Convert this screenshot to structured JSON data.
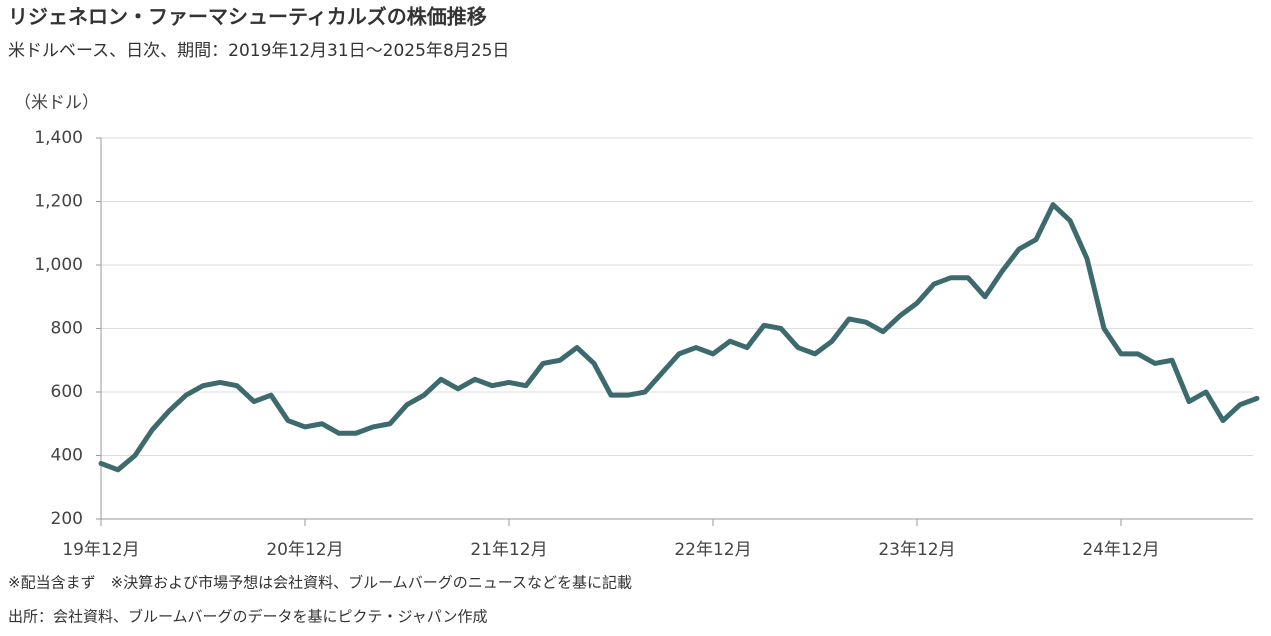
{
  "chart_data": {
    "type": "line",
    "title": "リジェネロン・ファーマシューティカルズの株価推移",
    "subtitle": "米ドルベース、日次、期間：2019年12月31日～2025年8月25日",
    "y_label": "（米ドル）",
    "notes": [
      "※配当含まず　※決算および市場予想は会社資料、ブルームバーグのニュースなどを基に記載",
      "出所：会社資料、ブルームバーグのデータを基にピクテ・ジャパン作成"
    ],
    "x": [
      "2019-12",
      "2020-01",
      "2020-02",
      "2020-03",
      "2020-04",
      "2020-05",
      "2020-06",
      "2020-07",
      "2020-08",
      "2020-09",
      "2020-10",
      "2020-11",
      "2020-12",
      "2021-01",
      "2021-02",
      "2021-03",
      "2021-04",
      "2021-05",
      "2021-06",
      "2021-07",
      "2021-08",
      "2021-09",
      "2021-10",
      "2021-11",
      "2021-12",
      "2022-01",
      "2022-02",
      "2022-03",
      "2022-04",
      "2022-05",
      "2022-06",
      "2022-07",
      "2022-08",
      "2022-09",
      "2022-10",
      "2022-11",
      "2022-12",
      "2023-01",
      "2023-02",
      "2023-03",
      "2023-04",
      "2023-05",
      "2023-06",
      "2023-07",
      "2023-08",
      "2023-09",
      "2023-10",
      "2023-11",
      "2023-12",
      "2024-01",
      "2024-02",
      "2024-03",
      "2024-04",
      "2024-05",
      "2024-06",
      "2024-07",
      "2024-08",
      "2024-09",
      "2024-10",
      "2024-11",
      "2024-12",
      "2025-01",
      "2025-02",
      "2025-03",
      "2025-04",
      "2025-05",
      "2025-06",
      "2025-07",
      "2025-08"
    ],
    "series": [
      {
        "name": "リジェネロン・ファーマシューティカルズ",
        "color": "#3d6a6d",
        "values": [
          375,
          355,
          400,
          480,
          540,
          590,
          620,
          630,
          620,
          570,
          590,
          510,
          490,
          500,
          470,
          470,
          490,
          500,
          560,
          590,
          640,
          610,
          640,
          620,
          630,
          620,
          690,
          700,
          740,
          690,
          590,
          590,
          600,
          660,
          720,
          740,
          720,
          760,
          740,
          810,
          800,
          740,
          720,
          760,
          830,
          820,
          790,
          840,
          880,
          940,
          960,
          960,
          900,
          980,
          1050,
          1080,
          1190,
          1140,
          1020,
          800,
          720,
          720,
          690,
          700,
          570,
          600,
          510,
          560,
          580
        ]
      }
    ],
    "xlim": [
      "2019-12",
      "2025-08"
    ],
    "xticks": [
      {
        "value": "2019-12",
        "label": "19年12月"
      },
      {
        "value": "2020-12",
        "label": "20年12月"
      },
      {
        "value": "2021-12",
        "label": "21年12月"
      },
      {
        "value": "2022-12",
        "label": "22年12月"
      },
      {
        "value": "2023-12",
        "label": "23年12月"
      },
      {
        "value": "2024-12",
        "label": "24年12月"
      }
    ],
    "ylim": [
      200,
      1400
    ],
    "yticks": [
      200,
      400,
      600,
      800,
      {
        "value": 1000,
        "label": "1,000"
      },
      {
        "value": 1200,
        "label": "1,200"
      },
      {
        "value": 1400,
        "label": "1,400"
      }
    ],
    "grid": true
  }
}
